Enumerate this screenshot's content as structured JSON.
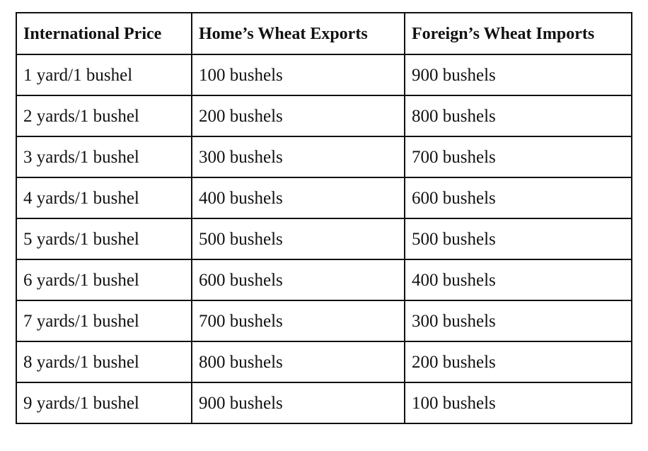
{
  "table": {
    "headers": [
      "International Price",
      "Home’s Wheat Exports",
      "Foreign’s Wheat Imports"
    ],
    "rows": [
      [
        "1 yard/1 bushel",
        "100 bushels",
        "900 bushels"
      ],
      [
        "2 yards/1 bushel",
        "200 bushels",
        "800 bushels"
      ],
      [
        "3 yards/1 bushel",
        "300 bushels",
        "700 bushels"
      ],
      [
        "4 yards/1 bushel",
        "400 bushels",
        "600 bushels"
      ],
      [
        "5 yards/1 bushel",
        "500 bushels",
        "500 bushels"
      ],
      [
        "6 yards/1 bushel",
        "600 bushels",
        "400 bushels"
      ],
      [
        "7 yards/1 bushel",
        "700 bushels",
        "300 bushels"
      ],
      [
        "8 yards/1 bushel",
        "800 bushels",
        "200 bushels"
      ],
      [
        "9 yards/1 bushel",
        "900 bushels",
        "100 bushels"
      ]
    ]
  }
}
